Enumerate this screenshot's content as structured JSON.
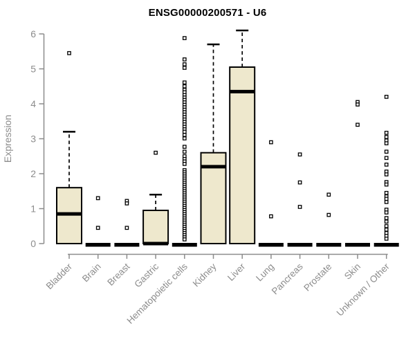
{
  "chart_data": {
    "type": "boxplot",
    "title": "ENSG00000200571 - U6",
    "ylabel": "Expression",
    "xlabel": "",
    "ylim": [
      0,
      6
    ],
    "yticks": [
      0,
      1,
      2,
      3,
      4,
      5,
      6
    ],
    "grid": false,
    "legend": "none",
    "colors": {
      "box_fill": "#eee8cd",
      "box_stroke": "#000000",
      "median": "#000000",
      "whisker": "#000000",
      "outlier_stroke": "#000000",
      "outlier_fill": "#ffffff",
      "axis": "#8c8c8c",
      "tick_label": "#8c8c8c",
      "title": "#000000",
      "background": "#ffffff"
    },
    "categories": [
      "Bladder",
      "Brain",
      "Breast",
      "Gastric",
      "Hematopoietic cells",
      "Kidney",
      "Liver",
      "Lung",
      "Pancreas",
      "Prostate",
      "Skin",
      "Unknown / Other"
    ],
    "series": [
      {
        "name": "Bladder",
        "q1": 0,
        "median": 0.85,
        "q3": 1.6,
        "whisker_low": 0,
        "whisker_high": 3.2,
        "outliers": [
          5.45
        ]
      },
      {
        "name": "Brain",
        "q1": 0,
        "median": 0,
        "q3": 0,
        "whisker_low": 0,
        "whisker_high": 0,
        "outliers": [
          1.3,
          0.45
        ]
      },
      {
        "name": "Breast",
        "q1": 0,
        "median": 0,
        "q3": 0,
        "whisker_low": 0,
        "whisker_high": 0,
        "outliers": [
          1.22,
          1.15,
          0.45
        ]
      },
      {
        "name": "Gastric",
        "q1": 0,
        "median": 0,
        "q3": 0.95,
        "whisker_low": 0,
        "whisker_high": 1.4,
        "outliers": [
          2.6
        ]
      },
      {
        "name": "Hematopoietic cells",
        "q1": 0,
        "median": 0,
        "q3": 0,
        "whisker_low": 0,
        "whisker_high": 0,
        "outliers": [
          5.88,
          5.27,
          5.13,
          5.03,
          4.61,
          4.5,
          4.4,
          4.33,
          4.25,
          4.18,
          4.11,
          4.04,
          3.97,
          3.9,
          3.83,
          3.76,
          3.69,
          3.62,
          3.55,
          3.48,
          3.41,
          3.34,
          3.27,
          3.2,
          3.11,
          3.01,
          2.77,
          2.63,
          2.5,
          2.42,
          2.35,
          2.28,
          2.1,
          2.04,
          1.98,
          1.92,
          1.86,
          1.8,
          1.74,
          1.68,
          1.62,
          1.56,
          1.5,
          1.44,
          1.38,
          1.32,
          1.26,
          1.2,
          1.14,
          1.08,
          1.02,
          0.96,
          0.9,
          0.84,
          0.78,
          0.72,
          0.66,
          0.6,
          0.54,
          0.48,
          0.42,
          0.36,
          0.3,
          0.24,
          0.18,
          0.12
        ]
      },
      {
        "name": "Kidney",
        "q1": 0,
        "median": 2.2,
        "q3": 2.6,
        "whisker_low": 0,
        "whisker_high": 5.7,
        "outliers": []
      },
      {
        "name": "Liver",
        "q1": 0,
        "median": 4.35,
        "q3": 5.05,
        "whisker_low": 0,
        "whisker_high": 6.1,
        "outliers": []
      },
      {
        "name": "Lung",
        "q1": 0,
        "median": 0,
        "q3": 0,
        "whisker_low": 0,
        "whisker_high": 0,
        "outliers": [
          2.9,
          0.78
        ]
      },
      {
        "name": "Pancreas",
        "q1": 0,
        "median": 0,
        "q3": 0,
        "whisker_low": 0,
        "whisker_high": 0,
        "outliers": [
          2.55,
          1.75,
          1.05
        ]
      },
      {
        "name": "Prostate",
        "q1": 0,
        "median": 0,
        "q3": 0,
        "whisker_low": 0,
        "whisker_high": 0,
        "outliers": [
          1.4,
          0.82
        ]
      },
      {
        "name": "Skin",
        "q1": 0,
        "median": 0,
        "q3": 0,
        "whisker_low": 0,
        "whisker_high": 0,
        "outliers": [
          4.05,
          3.98,
          3.4
        ]
      },
      {
        "name": "Unknown / Other",
        "q1": 0,
        "median": 0,
        "q3": 0,
        "whisker_low": 0,
        "whisker_high": 0,
        "outliers": [
          4.2,
          3.17,
          3.05,
          2.95,
          2.87,
          2.63,
          2.45,
          2.26,
          2.06,
          1.98,
          1.76,
          1.69,
          1.45,
          1.35,
          1.28,
          1.19,
          0.97,
          0.89,
          0.73,
          0.63,
          0.5,
          0.4,
          0.3,
          0.22,
          0.14
        ]
      }
    ]
  }
}
